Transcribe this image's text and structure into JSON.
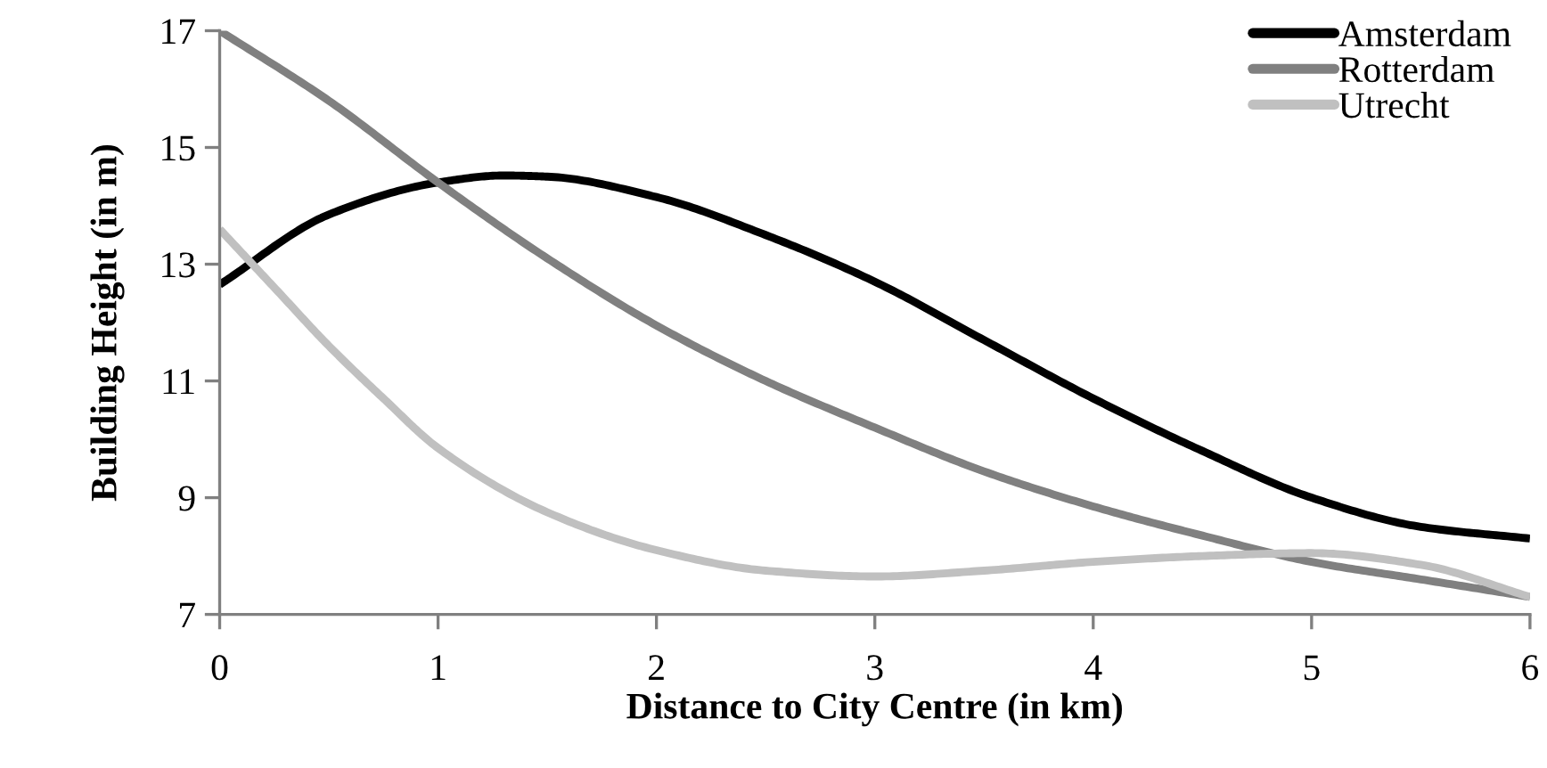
{
  "chart_data": {
    "type": "line",
    "xlabel": "Distance to City Centre (in km)",
    "ylabel": "Building Height (in m)",
    "xlim": [
      0,
      6
    ],
    "ylim": [
      7,
      17
    ],
    "xticks": [
      0,
      1,
      2,
      3,
      4,
      5,
      6
    ],
    "yticks": [
      7,
      9,
      11,
      13,
      15,
      17
    ],
    "grid": false,
    "legend": "top right",
    "marker": "none",
    "line_style": "solid",
    "series": [
      {
        "name": "Amsterdam",
        "color": "#000000",
        "x": [
          0,
          0.5,
          1,
          1.3,
          1.5,
          2,
          2.5,
          3,
          3.5,
          4,
          4.5,
          5,
          5.5,
          6
        ],
        "values": [
          12.65,
          13.85,
          14.4,
          14.52,
          14.5,
          14.15,
          13.5,
          12.7,
          11.7,
          10.7,
          9.8,
          9.0,
          8.5,
          8.3
        ]
      },
      {
        "name": "Rotterdam",
        "color": "#808080",
        "x": [
          0,
          0.5,
          1,
          1.5,
          2,
          2.5,
          3,
          3.5,
          4,
          4.5,
          5,
          5.5,
          6
        ],
        "values": [
          17,
          15.8,
          14.4,
          13.1,
          11.95,
          11.0,
          10.2,
          9.45,
          8.85,
          8.35,
          7.9,
          7.6,
          7.3
        ]
      },
      {
        "name": "Utrecht",
        "color": "#c0c0c0",
        "x": [
          0,
          0.25,
          0.5,
          0.75,
          1,
          1.5,
          2,
          2.5,
          3,
          3.5,
          4,
          4.5,
          5,
          5.5,
          6
        ],
        "values": [
          13.6,
          12.6,
          11.6,
          10.7,
          9.85,
          8.75,
          8.1,
          7.75,
          7.65,
          7.75,
          7.9,
          8.0,
          8.05,
          7.85,
          7.3
        ]
      }
    ]
  }
}
